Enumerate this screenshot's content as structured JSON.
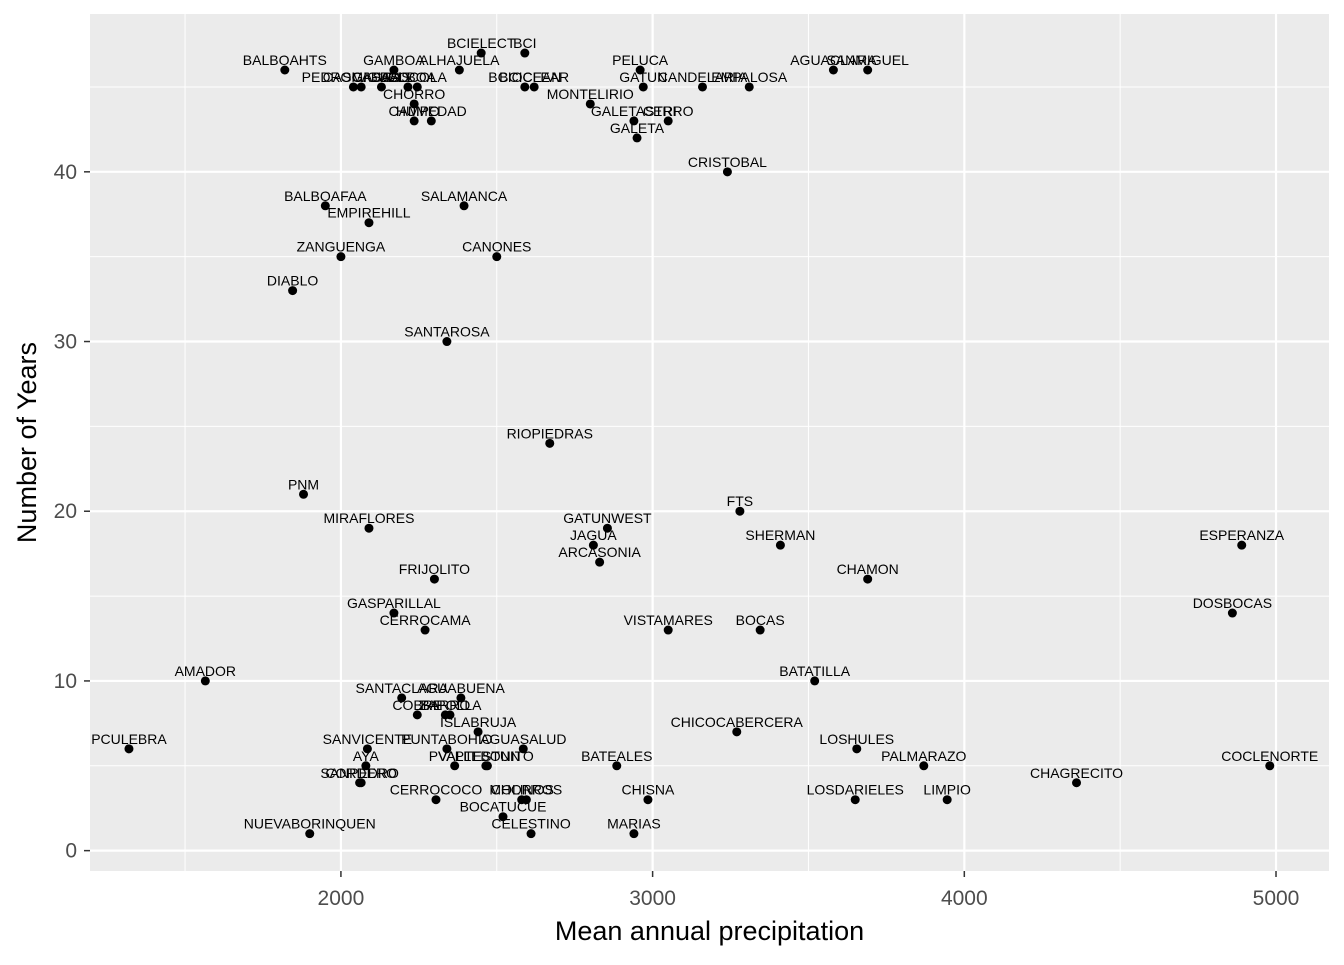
{
  "chart_data": {
    "type": "scatter",
    "title": "",
    "xlabel": "Mean annual precipitation",
    "ylabel": "Number of Years",
    "xlim": [
      1195,
      5170
    ],
    "ylim": [
      -1.2,
      49.3
    ],
    "x_ticks": [
      2000,
      3000,
      4000,
      5000
    ],
    "y_ticks": [
      0,
      10,
      20,
      30,
      40
    ],
    "grid": true,
    "legend": "none",
    "colors": {
      "panel": "#ebebeb",
      "grid": "#ffffff",
      "point": "#000000",
      "tick_text": "#4d4d4d"
    },
    "points": [
      {
        "label": "BALBOAHTS",
        "x": 1820,
        "y": 46
      },
      {
        "label": "BCIELECT",
        "x": 2450,
        "y": 47
      },
      {
        "label": "BCI",
        "x": 2590,
        "y": 47
      },
      {
        "label": "GAMBOA",
        "x": 2170,
        "y": 46
      },
      {
        "label": "ALHAJUELA",
        "x": 2380,
        "y": 46
      },
      {
        "label": "PELUCA",
        "x": 2960,
        "y": 46
      },
      {
        "label": "AGUACLARA",
        "x": 3580,
        "y": 46
      },
      {
        "label": "SANMIGUEL",
        "x": 3690,
        "y": 46
      },
      {
        "label": "PEDROMIGUEL",
        "x": 2040,
        "y": 45
      },
      {
        "label": "CASCADAS",
        "x": 2065,
        "y": 45
      },
      {
        "label": "GASCAS",
        "x": 2130,
        "y": 45
      },
      {
        "label": "BALBOA",
        "x": 2215,
        "y": 45
      },
      {
        "label": "COCOLA",
        "x": 2245,
        "y": 45
      },
      {
        "label": "BCIOCEAN",
        "x": 2590,
        "y": 45
      },
      {
        "label": "BCICLEAR",
        "x": 2620,
        "y": 45
      },
      {
        "label": "GATUN",
        "x": 2970,
        "y": 45
      },
      {
        "label": "CANDELARIA",
        "x": 3160,
        "y": 45
      },
      {
        "label": "EMPALOSA",
        "x": 3310,
        "y": 45
      },
      {
        "label": "CHORRO",
        "x": 2235,
        "y": 44
      },
      {
        "label": "MONTELIRIO",
        "x": 2800,
        "y": 44
      },
      {
        "label": "HUMEDAD",
        "x": 2290,
        "y": 43
      },
      {
        "label": "CAMPO",
        "x": 2235,
        "y": 43
      },
      {
        "label": "GALETASTRI",
        "x": 2940,
        "y": 43
      },
      {
        "label": "CERRO",
        "x": 3050,
        "y": 43
      },
      {
        "label": "GALETA",
        "x": 2950,
        "y": 42
      },
      {
        "label": "CRISTOBAL",
        "x": 3240,
        "y": 40
      },
      {
        "label": "BALBOAFAA",
        "x": 1950,
        "y": 38
      },
      {
        "label": "SALAMANCA",
        "x": 2395,
        "y": 38
      },
      {
        "label": "EMPIREHILL",
        "x": 2090,
        "y": 37
      },
      {
        "label": "ZANGUENGA",
        "x": 2000,
        "y": 35
      },
      {
        "label": "CANONES",
        "x": 2500,
        "y": 35
      },
      {
        "label": "DIABLO",
        "x": 1845,
        "y": 33
      },
      {
        "label": "SANTAROSA",
        "x": 2340,
        "y": 30
      },
      {
        "label": "RIOPIEDRAS",
        "x": 2670,
        "y": 24
      },
      {
        "label": "PNM",
        "x": 1880,
        "y": 21
      },
      {
        "label": "FTS",
        "x": 3280,
        "y": 20
      },
      {
        "label": "MIRAFLORES",
        "x": 2090,
        "y": 19
      },
      {
        "label": "GATUNWEST",
        "x": 2855,
        "y": 19
      },
      {
        "label": "JAGUA",
        "x": 2810,
        "y": 18
      },
      {
        "label": "SHERMAN",
        "x": 3410,
        "y": 18
      },
      {
        "label": "ESPERANZA",
        "x": 4890,
        "y": 18
      },
      {
        "label": "ARCASONIA",
        "x": 2830,
        "y": 17
      },
      {
        "label": "FRIJOLITO",
        "x": 2300,
        "y": 16
      },
      {
        "label": "CHAMON",
        "x": 3690,
        "y": 16
      },
      {
        "label": "GASPARILLAL",
        "x": 2170,
        "y": 14
      },
      {
        "label": "DOSBOCAS",
        "x": 4860,
        "y": 14
      },
      {
        "label": "CERROCAMA",
        "x": 2270,
        "y": 13
      },
      {
        "label": "VISTAMARES",
        "x": 3050,
        "y": 13
      },
      {
        "label": "BOCAS",
        "x": 3345,
        "y": 13
      },
      {
        "label": "AMADOR",
        "x": 1565,
        "y": 10
      },
      {
        "label": "BATATILLA",
        "x": 3520,
        "y": 10
      },
      {
        "label": "SANTACLARA",
        "x": 2195,
        "y": 9
      },
      {
        "label": "AGUABUENA",
        "x": 2385,
        "y": 9
      },
      {
        "label": "COBRE",
        "x": 2245,
        "y": 8
      },
      {
        "label": "BARRO",
        "x": 2335,
        "y": 8
      },
      {
        "label": "ZAPOLLA",
        "x": 2350,
        "y": 8
      },
      {
        "label": "ISLABRUJA",
        "x": 2440,
        "y": 7
      },
      {
        "label": "CHICOCABERCERA",
        "x": 3270,
        "y": 7
      },
      {
        "label": "PCULEBRA",
        "x": 1320,
        "y": 6
      },
      {
        "label": "SANVICENTE",
        "x": 2085,
        "y": 6
      },
      {
        "label": "PUNTABOHIO",
        "x": 2340,
        "y": 6
      },
      {
        "label": "AGUASALUD",
        "x": 2585,
        "y": 6
      },
      {
        "label": "LOSHULES",
        "x": 3655,
        "y": 6
      },
      {
        "label": "AYA",
        "x": 2080,
        "y": 5
      },
      {
        "label": "PVALLE",
        "x": 2365,
        "y": 5
      },
      {
        "label": "VALLEBONITO",
        "x": 2465,
        "y": 5
      },
      {
        "label": "PTESTUN",
        "x": 2470,
        "y": 5
      },
      {
        "label": "BATEALES",
        "x": 2885,
        "y": 5
      },
      {
        "label": "PALMARAZO",
        "x": 3870,
        "y": 5
      },
      {
        "label": "COCLENORTE",
        "x": 4980,
        "y": 5
      },
      {
        "label": "SANPEDRO",
        "x": 2060,
        "y": 4
      },
      {
        "label": "CORDERO",
        "x": 2065,
        "y": 4
      },
      {
        "label": "CHAGRECITO",
        "x": 4360,
        "y": 4
      },
      {
        "label": "CERROCOCO",
        "x": 2305,
        "y": 3
      },
      {
        "label": "MOLINOS",
        "x": 2580,
        "y": 3
      },
      {
        "label": "CHORROS",
        "x": 2595,
        "y": 3
      },
      {
        "label": "CHISNA",
        "x": 2985,
        "y": 3
      },
      {
        "label": "LOSDARIELES",
        "x": 3650,
        "y": 3
      },
      {
        "label": "LIMPIO",
        "x": 3945,
        "y": 3
      },
      {
        "label": "BOCATUCUE",
        "x": 2520,
        "y": 2
      },
      {
        "label": "NUEVABORINQUEN",
        "x": 1900,
        "y": 1
      },
      {
        "label": "CELESTINO",
        "x": 2610,
        "y": 1
      },
      {
        "label": "MARIAS",
        "x": 2940,
        "y": 1
      }
    ]
  }
}
